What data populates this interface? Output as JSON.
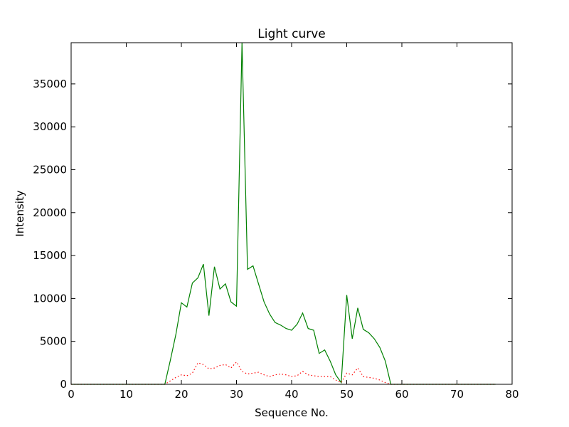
{
  "chart_data": {
    "type": "line",
    "title": "Light curve",
    "xlabel": "Sequence No.",
    "ylabel": "Intensity",
    "xlim": [
      0,
      80
    ],
    "ylim": [
      0,
      39800
    ],
    "xticks": [
      0,
      10,
      20,
      30,
      40,
      50,
      60,
      70,
      80
    ],
    "yticks": [
      0,
      5000,
      10000,
      15000,
      20000,
      25000,
      30000,
      35000
    ],
    "grid": false,
    "legend": "none",
    "series": [
      {
        "color": "#008000",
        "line_style": "solid",
        "x": [
          0,
          1,
          2,
          3,
          4,
          5,
          6,
          7,
          8,
          9,
          10,
          11,
          12,
          13,
          14,
          15,
          16,
          17,
          18,
          19,
          20,
          21,
          22,
          23,
          24,
          25,
          26,
          27,
          28,
          29,
          30,
          31,
          32,
          33,
          34,
          35,
          36,
          37,
          38,
          39,
          40,
          41,
          42,
          43,
          44,
          45,
          46,
          47,
          48,
          49,
          50,
          51,
          52,
          53,
          54,
          55,
          56,
          57,
          58,
          59,
          60,
          61,
          62,
          63,
          64,
          65,
          66,
          67,
          68,
          69,
          70,
          71,
          72,
          73,
          74,
          75,
          76,
          77
        ],
        "values": [
          0,
          0,
          0,
          0,
          0,
          0,
          0,
          0,
          0,
          0,
          0,
          0,
          0,
          0,
          0,
          0,
          0,
          0,
          2800,
          5800,
          9500,
          9000,
          11800,
          12400,
          14000,
          8000,
          13700,
          11100,
          11700,
          9600,
          9100,
          39800,
          13400,
          13800,
          11700,
          9600,
          8200,
          7200,
          6900,
          6500,
          6300,
          7000,
          8300,
          6500,
          6300,
          3600,
          4000,
          2700,
          1100,
          200,
          10400,
          5300,
          8900,
          6400,
          6000,
          5300,
          4300,
          2700,
          0,
          0,
          0,
          0,
          0,
          0,
          0,
          0,
          0,
          0,
          0,
          0,
          0,
          0,
          0,
          0,
          0,
          0,
          0,
          0
        ]
      },
      {
        "color": "#ff0000",
        "line_style": "dotted",
        "x": [
          0,
          1,
          2,
          3,
          4,
          5,
          6,
          7,
          8,
          9,
          10,
          11,
          12,
          13,
          14,
          15,
          16,
          17,
          18,
          19,
          20,
          21,
          22,
          23,
          24,
          25,
          26,
          27,
          28,
          29,
          30,
          31,
          32,
          33,
          34,
          35,
          36,
          37,
          38,
          39,
          40,
          41,
          42,
          43,
          44,
          45,
          46,
          47,
          48,
          49,
          50,
          51,
          52,
          53,
          54,
          55,
          56,
          57,
          58,
          59,
          60,
          61,
          62,
          63,
          64,
          65,
          66,
          67,
          68,
          69,
          70,
          71,
          72,
          73,
          74,
          75,
          76,
          77
        ],
        "values": [
          0,
          0,
          0,
          0,
          0,
          0,
          0,
          0,
          0,
          0,
          0,
          0,
          0,
          0,
          0,
          0,
          0,
          0,
          400,
          800,
          1100,
          1000,
          1300,
          2500,
          2300,
          1800,
          1900,
          2200,
          2300,
          1900,
          2600,
          1500,
          1200,
          1300,
          1400,
          1100,
          900,
          1100,
          1200,
          1100,
          900,
          1000,
          1500,
          1100,
          1000,
          900,
          900,
          900,
          500,
          200,
          1300,
          1100,
          1900,
          900,
          800,
          700,
          500,
          200,
          0,
          0,
          0,
          0,
          0,
          0,
          0,
          0,
          0,
          0,
          0,
          0,
          0,
          0,
          0,
          0,
          0,
          0,
          0,
          0
        ]
      }
    ]
  }
}
